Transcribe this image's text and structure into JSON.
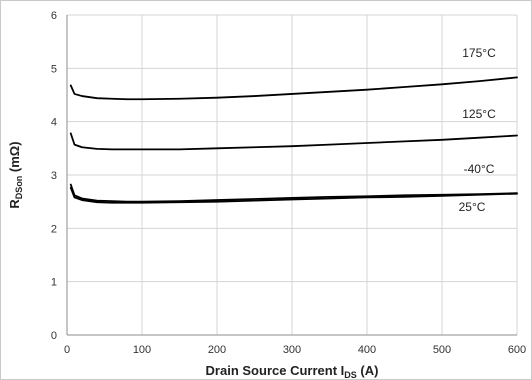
{
  "chart_data": {
    "type": "line",
    "xlabel": {
      "main": "Drain Source Current I",
      "sub": "DS",
      "suffix": " (A)"
    },
    "ylabel": {
      "main": "R",
      "sub": "DSon",
      "suffix": " (mΩ)"
    },
    "xlim": [
      0,
      600
    ],
    "ylim": [
      0,
      6
    ],
    "xticks": [
      0,
      100,
      200,
      300,
      400,
      500,
      600
    ],
    "yticks": [
      0,
      1,
      2,
      3,
      4,
      5,
      6
    ],
    "grid": true,
    "colors": {
      "line": "#000000",
      "grid": "#d4d4d4",
      "axis": "#8c8c8c"
    },
    "series": [
      {
        "name": "175°C",
        "x": [
          5,
          10,
          20,
          40,
          60,
          80,
          100,
          150,
          200,
          250,
          300,
          350,
          400,
          450,
          500,
          550,
          600
        ],
        "y": [
          4.68,
          4.52,
          4.48,
          4.44,
          4.43,
          4.42,
          4.42,
          4.43,
          4.45,
          4.48,
          4.52,
          4.56,
          4.6,
          4.65,
          4.7,
          4.76,
          4.83
        ]
      },
      {
        "name": "125°C",
        "x": [
          5,
          10,
          20,
          40,
          60,
          80,
          100,
          150,
          200,
          250,
          300,
          350,
          400,
          450,
          500,
          550,
          600
        ],
        "y": [
          3.78,
          3.57,
          3.52,
          3.49,
          3.48,
          3.48,
          3.48,
          3.48,
          3.5,
          3.52,
          3.54,
          3.57,
          3.6,
          3.63,
          3.66,
          3.7,
          3.74
        ]
      },
      {
        "name": "-40°C",
        "x": [
          5,
          10,
          20,
          40,
          60,
          80,
          100,
          150,
          200,
          250,
          300,
          350,
          400,
          450,
          500,
          550,
          600
        ],
        "y": [
          2.82,
          2.62,
          2.56,
          2.52,
          2.51,
          2.5,
          2.5,
          2.51,
          2.53,
          2.55,
          2.57,
          2.59,
          2.6,
          2.62,
          2.63,
          2.64,
          2.66
        ]
      },
      {
        "name": "25°C",
        "x": [
          5,
          10,
          20,
          40,
          60,
          80,
          100,
          150,
          200,
          250,
          300,
          350,
          400,
          450,
          500,
          550,
          600
        ],
        "y": [
          2.76,
          2.58,
          2.53,
          2.49,
          2.48,
          2.48,
          2.48,
          2.49,
          2.5,
          2.52,
          2.54,
          2.56,
          2.58,
          2.59,
          2.61,
          2.63,
          2.65
        ]
      }
    ]
  }
}
